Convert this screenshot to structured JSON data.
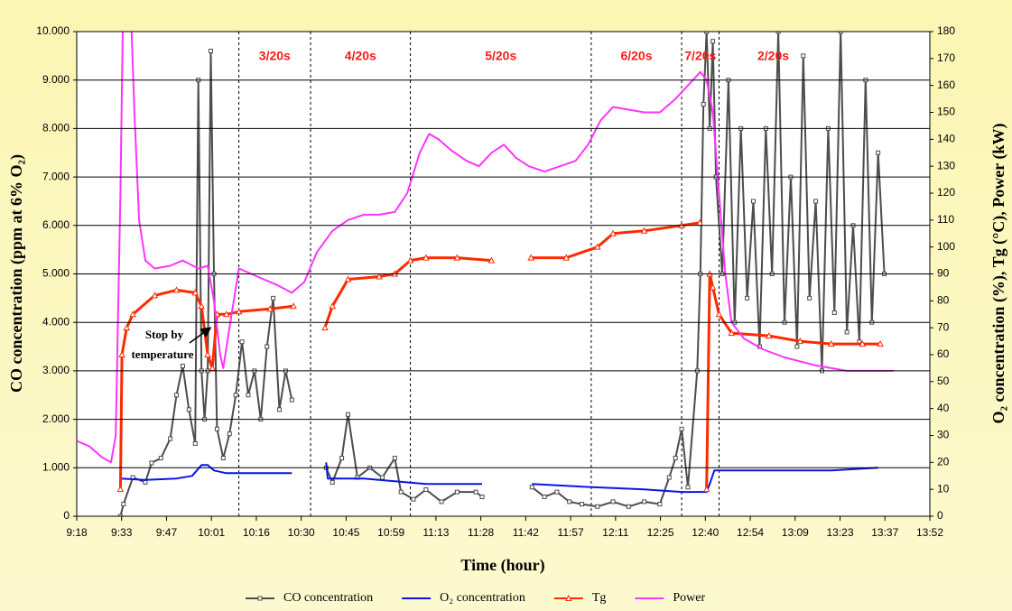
{
  "chart_data": {
    "type": "line",
    "x_label": "Time (hour)",
    "y_label": "CO concentration (ppm at 6% O₂)",
    "y2_label": "O₂ concentration (%), Tg (°C), Power (kW)",
    "xlim": [
      558,
      831.6
    ],
    "xticks": [
      {
        "value": 558,
        "label": "9:18"
      },
      {
        "value": 572.4,
        "label": "9:33"
      },
      {
        "value": 586.8,
        "label": "9:47"
      },
      {
        "value": 601.2,
        "label": "10:01"
      },
      {
        "value": 615.6,
        "label": "10:16"
      },
      {
        "value": 630,
        "label": "10:30"
      },
      {
        "value": 644.4,
        "label": "10:45"
      },
      {
        "value": 658.8,
        "label": "10:59"
      },
      {
        "value": 673.2,
        "label": "11:13"
      },
      {
        "value": 687.6,
        "label": "11:28"
      },
      {
        "value": 702,
        "label": "11:42"
      },
      {
        "value": 716.4,
        "label": "11:57"
      },
      {
        "value": 730.8,
        "label": "12:11"
      },
      {
        "value": 745.2,
        "label": "12:25"
      },
      {
        "value": 759.6,
        "label": "12:40"
      },
      {
        "value": 774,
        "label": "12:54"
      },
      {
        "value": 788.4,
        "label": "13:09"
      },
      {
        "value": 802.8,
        "label": "13:23"
      },
      {
        "value": 817.2,
        "label": "13:37"
      },
      {
        "value": 831.6,
        "label": "13:52"
      }
    ],
    "ylim": [
      0,
      10000
    ],
    "yticks": [
      0,
      {
        "value": 1000,
        "label": "1.000"
      },
      {
        "value": 2000,
        "label": "2.000"
      },
      {
        "value": 3000,
        "label": "3.000"
      },
      {
        "value": 4000,
        "label": "4.000"
      },
      {
        "value": 5000,
        "label": "5.000"
      },
      {
        "value": 6000,
        "label": "6.000"
      },
      {
        "value": 7000,
        "label": "7.000"
      },
      {
        "value": 8000,
        "label": "8.000"
      },
      {
        "value": 9000,
        "label": "9.000"
      },
      {
        "value": 10000,
        "label": "10.000"
      }
    ],
    "y2lim": [
      0,
      180
    ],
    "y2ticks": [
      0,
      10,
      20,
      30,
      40,
      50,
      60,
      70,
      80,
      90,
      100,
      110,
      120,
      130,
      140,
      150,
      160,
      170,
      180
    ],
    "grid": true,
    "legend": "bottom",
    "dividers": [
      610,
      633,
      665,
      723,
      752,
      764
    ],
    "phase_labels": [
      "3/20s",
      "4/20s",
      "5/20s",
      "6/20s",
      "7/20s",
      "2/20s"
    ],
    "annotation": [
      "Stop by",
      "temperature"
    ],
    "series": [
      {
        "name": "CO concentration",
        "color": "#4d4d4d",
        "marker": "square",
        "x": [
          572,
          573,
          576,
          580,
          582,
          585,
          588,
          590,
          592,
          594,
          596,
          597,
          598,
          599,
          600,
          601,
          602,
          603,
          605,
          607,
          609,
          611,
          613,
          615,
          617,
          619,
          621,
          623,
          625,
          627,
          632,
          638,
          640,
          643,
          645,
          648,
          652,
          656,
          660,
          662,
          666,
          670,
          675,
          680,
          686,
          688,
          696,
          704,
          708,
          712,
          716,
          720,
          725,
          730,
          735,
          740,
          745,
          748,
          750,
          752,
          754,
          757,
          758,
          759,
          760,
          761,
          762,
          763,
          765,
          767,
          769,
          771,
          773,
          775,
          777,
          779,
          781,
          783,
          785,
          787,
          789,
          791,
          793,
          795,
          797,
          799,
          801,
          803,
          805,
          807,
          809,
          811,
          813,
          815,
          817
        ],
        "values": [
          0,
          250,
          800,
          700,
          1100,
          1200,
          1600,
          2500,
          3100,
          2200,
          1500,
          9000,
          3000,
          2000,
          3000,
          9600,
          5000,
          1800,
          1200,
          1700,
          2500,
          3600,
          2500,
          3000,
          2000,
          3500,
          4500,
          2200,
          3000,
          2400,
          null,
          1000,
          700,
          1200,
          2100,
          800,
          1000,
          800,
          1200,
          500,
          350,
          550,
          300,
          500,
          500,
          400,
          null,
          600,
          400,
          500,
          300,
          250,
          200,
          300,
          200,
          300,
          250,
          800,
          1200,
          1800,
          600,
          3000,
          5000,
          8500,
          10000,
          8000,
          9800,
          7000,
          5000,
          9000,
          4000,
          8000,
          4500,
          6500,
          3500,
          8000,
          5000,
          10000,
          4000,
          7000,
          3500,
          9500,
          4500,
          6500,
          3000,
          8000,
          4200,
          10000,
          3800,
          6000,
          3600,
          9000,
          4000,
          7500,
          5000
        ]
      },
      {
        "name": "O₂ concentration",
        "color": "#0a14e6",
        "marker": "none",
        "axis": "y2",
        "x": [
          572,
          580,
          590,
          595,
          598,
          600,
          602,
          606,
          620,
          627,
          632,
          638,
          638.5,
          650,
          660,
          670,
          688,
          696,
          704,
          720,
          740,
          752,
          760,
          761,
          762.5,
          780,
          800,
          815
        ],
        "values": [
          14,
          13.5,
          14,
          15,
          19,
          19,
          17,
          16,
          16,
          16,
          null,
          20,
          14,
          14,
          13,
          12,
          12,
          null,
          12,
          11,
          10,
          9,
          9,
          12,
          17,
          17,
          17,
          18
        ]
      },
      {
        "name": "Tg",
        "color": "#ff2a00",
        "marker": "triangle",
        "axis": "y2",
        "x": [
          572,
          572.5,
          574,
          576,
          583,
          590,
          596,
          598,
          600,
          601.5,
          603,
          606,
          610,
          620,
          627.5,
          632,
          637.6,
          640,
          645,
          655,
          660,
          665,
          670,
          680,
          691,
          697,
          703.7,
          715,
          725,
          730,
          740,
          752,
          757.8,
          759,
          760,
          761,
          762,
          764,
          768,
          780,
          790,
          800,
          810,
          815.7
        ],
        "values": [
          10,
          60,
          70,
          75,
          82,
          84,
          83,
          78,
          60,
          55,
          75,
          75,
          76,
          77,
          78,
          null,
          70,
          78,
          88,
          89,
          90,
          95,
          96,
          96,
          95,
          null,
          96,
          96,
          100,
          105,
          106,
          108,
          109,
          null,
          10,
          90,
          85,
          75,
          68,
          67,
          65,
          64,
          64,
          64
        ]
      },
      {
        "name": "Power",
        "color": "#ff33ff",
        "marker": "none",
        "axis": "y2",
        "x": [
          558,
          562,
          566,
          569,
          570.5,
          572,
          573,
          575,
          576.5,
          578,
          580,
          583,
          588,
          592,
          597,
          600,
          602,
          604,
          605,
          607,
          610,
          614,
          618,
          622,
          627,
          631,
          635,
          640,
          645,
          650,
          655,
          660,
          664,
          668,
          671,
          674,
          678,
          683,
          687,
          691,
          695,
          699,
          703,
          708,
          713,
          718,
          722,
          726,
          730,
          735,
          740,
          745,
          750,
          754,
          758,
          760,
          762,
          764,
          766,
          768,
          772,
          778,
          785,
          795,
          805,
          815,
          820
        ],
        "values": [
          28,
          26,
          22,
          20,
          30,
          120,
          200,
          200,
          150,
          110,
          95,
          92,
          93,
          95,
          92,
          93,
          80,
          60,
          55,
          70,
          92,
          90,
          88,
          86,
          83,
          87,
          98,
          106,
          110,
          112,
          112,
          113,
          120,
          135,
          142,
          140,
          136,
          132,
          130,
          135,
          138,
          133,
          130,
          128,
          130,
          132,
          138,
          147,
          152,
          151,
          150,
          150,
          155,
          160,
          165,
          162,
          150,
          120,
          90,
          72,
          66,
          62,
          59,
          56,
          54,
          54,
          54
        ]
      }
    ]
  }
}
